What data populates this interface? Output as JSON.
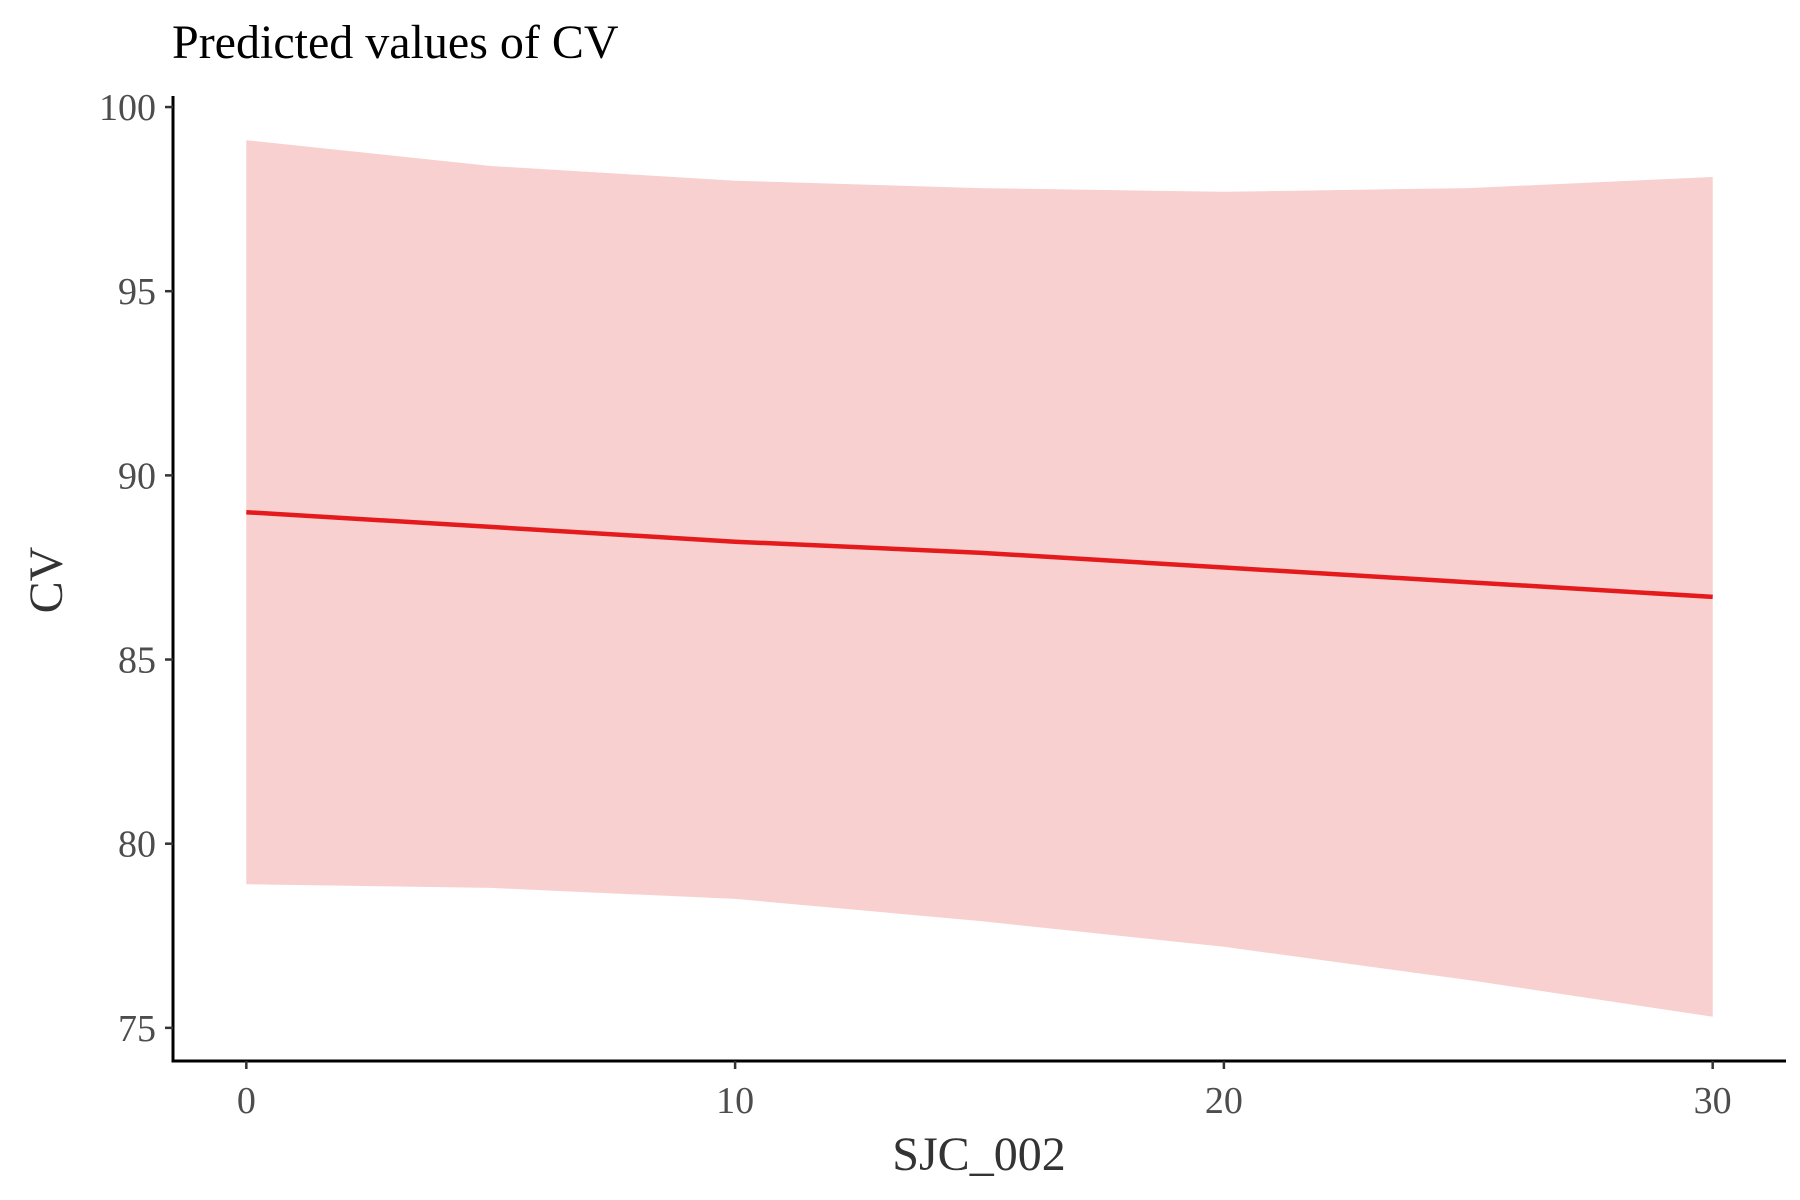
{
  "chart_data": {
    "type": "line",
    "title": "Predicted values of CV",
    "xlabel": "SJC_002",
    "ylabel": "CV",
    "xlim": [
      -1.5,
      31.5
    ],
    "ylim": [
      74.1,
      100.3
    ],
    "x_ticks": [
      0,
      10,
      20,
      30
    ],
    "y_ticks": [
      75,
      80,
      85,
      90,
      95,
      100
    ],
    "grid": false,
    "legend": "none",
    "line_color": "#e41a1c",
    "band_color": "#f8d0d0",
    "series": [
      {
        "x": [
          0,
          5,
          10,
          15,
          20,
          25,
          30
        ],
        "values": [
          89.0,
          88.6,
          88.2,
          87.9,
          87.5,
          87.1,
          86.7
        ],
        "ci_lower": [
          78.9,
          78.8,
          78.5,
          77.9,
          77.2,
          76.3,
          75.3
        ],
        "ci_upper": [
          99.1,
          98.4,
          98.0,
          97.8,
          97.7,
          97.8,
          98.1
        ]
      }
    ]
  }
}
